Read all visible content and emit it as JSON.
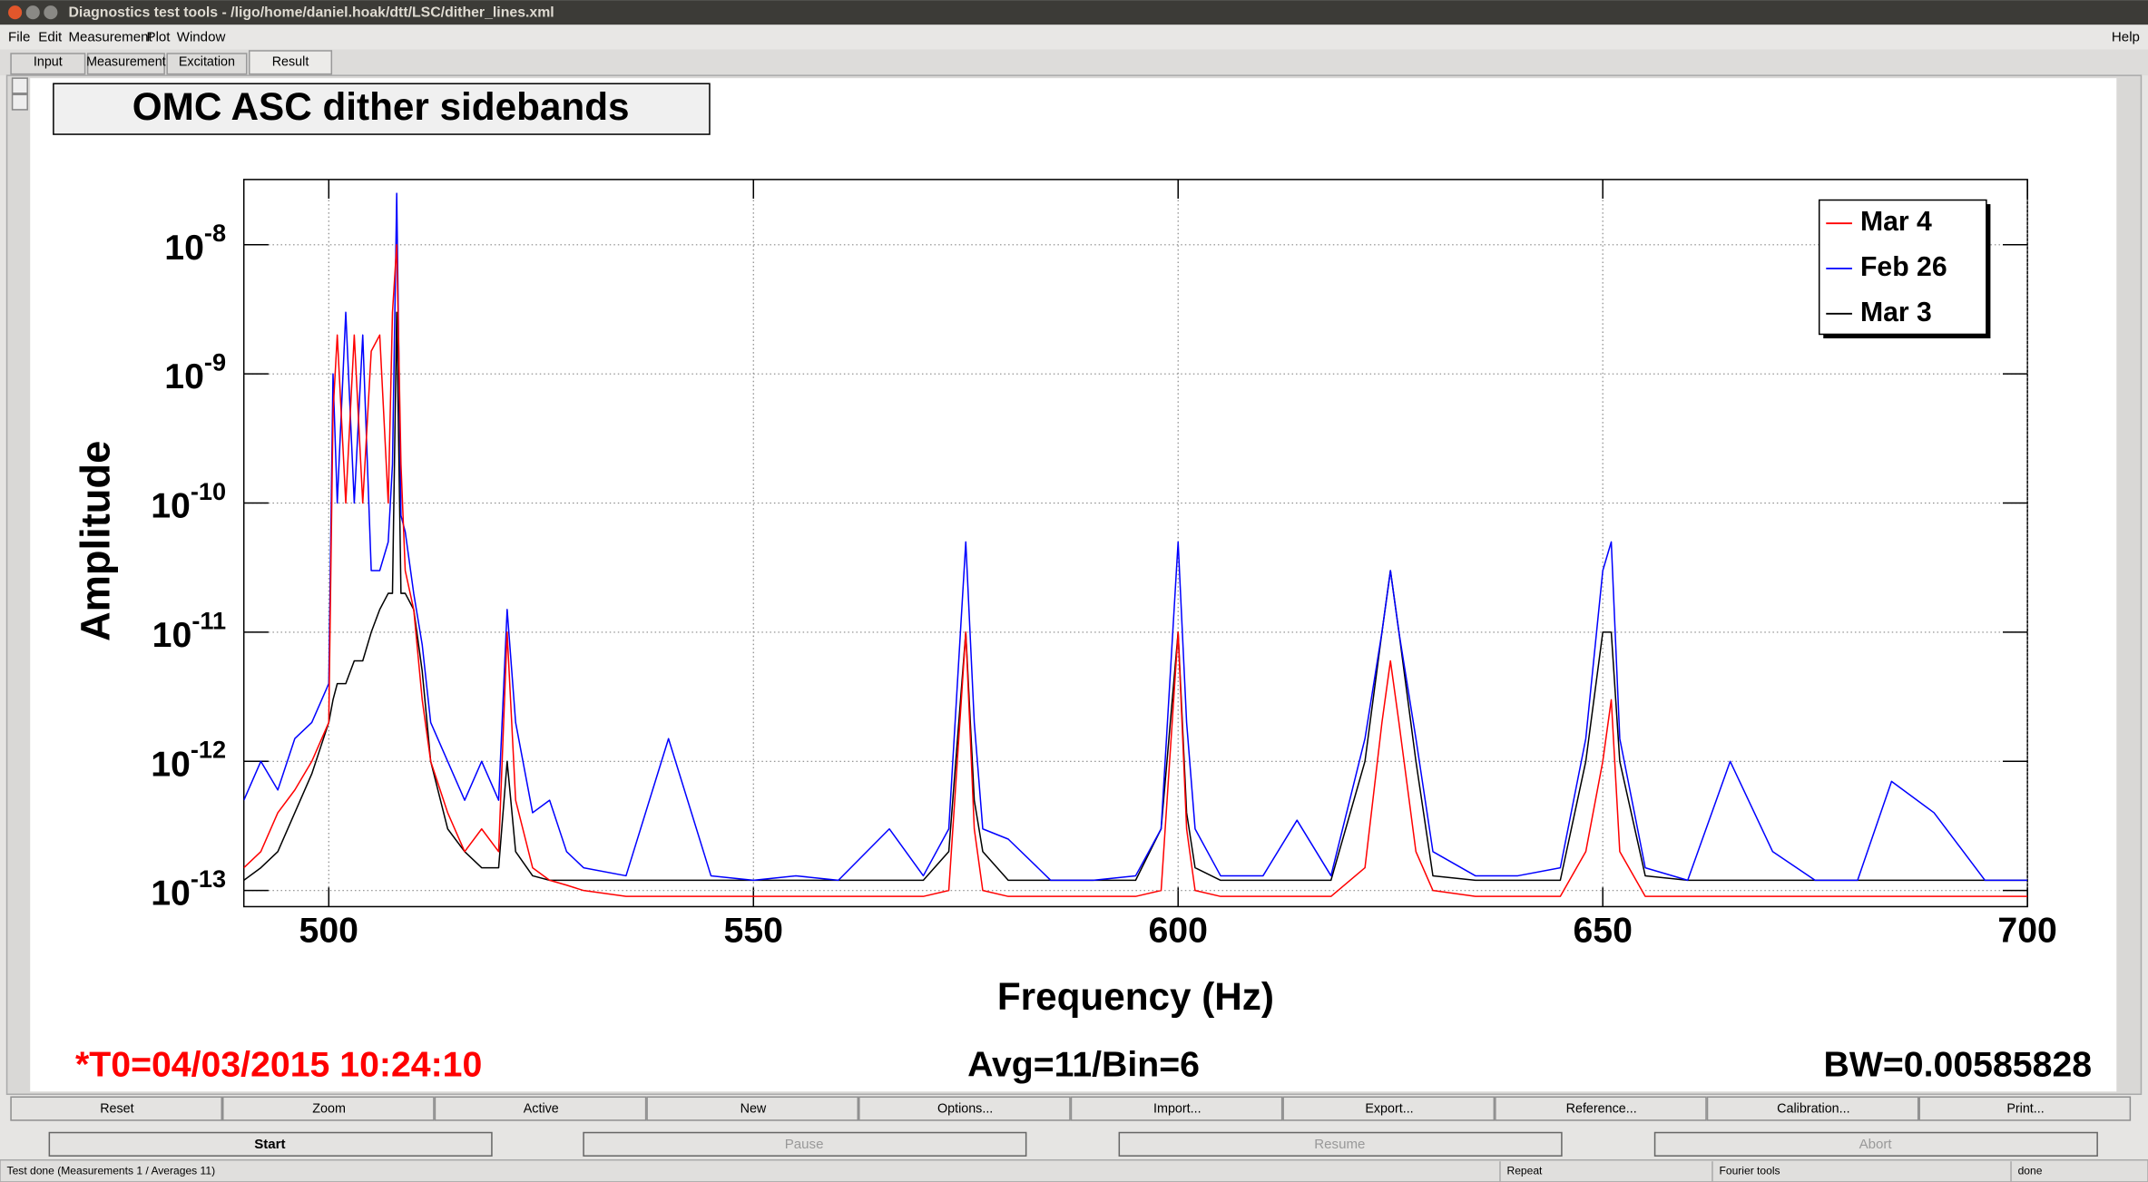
{
  "window_title": "Diagnostics test tools - /ligo/home/daniel.hoak/dtt/LSC/dither_lines.xml",
  "menu": [
    "File",
    "Edit",
    "Measurement",
    "Plot",
    "Window"
  ],
  "help": "Help",
  "tabs": [
    "Input",
    "Measurement",
    "Excitation",
    "Result"
  ],
  "chart_data": {
    "type": "line",
    "title": "OMC ASC dither sidebands",
    "x_label": "Frequency (Hz)",
    "y_label": "Amplitude",
    "log_y": true,
    "grid": true,
    "legend": "top-right",
    "xlim": [
      490,
      700
    ],
    "xticks": [
      500,
      550,
      600,
      650,
      700
    ],
    "ylim": [
      7.5e-14,
      3.2e-08
    ],
    "yticks": [
      {
        "value": 1e-13,
        "label": "10-13"
      },
      {
        "value": 1e-12,
        "label": "10-12"
      },
      {
        "value": 1e-11,
        "label": "10-11"
      },
      {
        "value": 1e-10,
        "label": "10-10"
      },
      {
        "value": 1e-09,
        "label": "10-9"
      },
      {
        "value": 1e-08,
        "label": "10-8"
      }
    ],
    "x": [
      490,
      492,
      494,
      496,
      498,
      500,
      500.5,
      501,
      502,
      503,
      504,
      505,
      506,
      507,
      507.5,
      508,
      508.5,
      509,
      510,
      511,
      512,
      514,
      516,
      518,
      520,
      521,
      522,
      524,
      526,
      528,
      530,
      535,
      540,
      545,
      550,
      555,
      560,
      566,
      570,
      573,
      575,
      576,
      577,
      580,
      585,
      590,
      595,
      598,
      600,
      601,
      602,
      605,
      610,
      614,
      618,
      622,
      624,
      625,
      626,
      628,
      630,
      635,
      640,
      645,
      648,
      650,
      651,
      652,
      655,
      660,
      665,
      670,
      675,
      680,
      684,
      689,
      695,
      700
    ],
    "series": [
      {
        "name": "Mar 4",
        "color": "#ff0000",
        "values": [
          1.5e-13,
          2e-13,
          4e-13,
          6e-13,
          1e-12,
          2e-12,
          5e-10,
          2e-09,
          1e-10,
          2e-09,
          1e-10,
          1.5e-09,
          2e-09,
          1e-10,
          3e-09,
          1e-08,
          2e-10,
          3e-11,
          1.5e-11,
          3e-12,
          1e-12,
          4e-13,
          2e-13,
          3e-13,
          2e-13,
          1e-11,
          5e-13,
          1.5e-13,
          1.2e-13,
          1.1e-13,
          1e-13,
          9e-14,
          9e-14,
          9e-14,
          9e-14,
          9e-14,
          9e-14,
          9e-14,
          9e-14,
          1e-13,
          1e-11,
          3e-13,
          1e-13,
          9e-14,
          9e-14,
          9e-14,
          9e-14,
          1e-13,
          1e-11,
          3e-13,
          1e-13,
          9e-14,
          9e-14,
          9e-14,
          9e-14,
          1.5e-13,
          2e-12,
          6e-12,
          2e-12,
          2e-13,
          1e-13,
          9e-14,
          9e-14,
          9e-14,
          2e-13,
          1e-12,
          3e-12,
          2e-13,
          9e-14,
          9e-14,
          9e-14,
          9e-14,
          9e-14,
          9e-14,
          9e-14,
          9e-14,
          9e-14,
          9e-14
        ]
      },
      {
        "name": "Feb 26",
        "color": "#0000ff",
        "values": [
          5e-13,
          1e-12,
          6e-13,
          1.5e-12,
          2e-12,
          4e-12,
          1e-09,
          1e-10,
          3e-09,
          1e-10,
          2e-09,
          3e-11,
          3e-11,
          5e-11,
          2e-10,
          2.5e-08,
          8e-11,
          6e-11,
          2e-11,
          8e-12,
          2e-12,
          1e-12,
          5e-13,
          1e-12,
          5e-13,
          1.5e-11,
          2e-12,
          4e-13,
          5e-13,
          2e-13,
          1.5e-13,
          1.3e-13,
          1.5e-12,
          1.3e-13,
          1.2e-13,
          1.3e-13,
          1.2e-13,
          3e-13,
          1.3e-13,
          3e-13,
          5e-11,
          2e-12,
          3e-13,
          2.5e-13,
          1.2e-13,
          1.2e-13,
          1.3e-13,
          3e-13,
          5e-11,
          2e-12,
          3e-13,
          1.3e-13,
          1.3e-13,
          3.5e-13,
          1.3e-13,
          1.5e-12,
          1e-11,
          3e-11,
          1e-11,
          1.5e-12,
          2e-13,
          1.3e-13,
          1.3e-13,
          1.5e-13,
          1.5e-12,
          3e-11,
          5e-11,
          1.5e-12,
          1.5e-13,
          1.2e-13,
          1e-12,
          2e-13,
          1.2e-13,
          1.2e-13,
          7e-13,
          4e-13,
          1.2e-13,
          1.2e-13
        ]
      },
      {
        "name": "Mar 3",
        "color": "#000000",
        "values": [
          1.2e-13,
          1.5e-13,
          2e-13,
          4e-13,
          8e-13,
          2e-12,
          3e-12,
          4e-12,
          4e-12,
          6e-12,
          6e-12,
          1e-11,
          1.5e-11,
          2e-11,
          2e-11,
          3e-09,
          2e-11,
          2e-11,
          1.5e-11,
          5e-12,
          1e-12,
          3e-13,
          2e-13,
          1.5e-13,
          1.5e-13,
          1e-12,
          2e-13,
          1.3e-13,
          1.2e-13,
          1.2e-13,
          1.2e-13,
          1.2e-13,
          1.2e-13,
          1.2e-13,
          1.2e-13,
          1.2e-13,
          1.2e-13,
          1.2e-13,
          1.2e-13,
          2e-13,
          1e-11,
          5e-13,
          2e-13,
          1.2e-13,
          1.2e-13,
          1.2e-13,
          1.2e-13,
          3e-13,
          1e-11,
          4e-13,
          1.5e-13,
          1.2e-13,
          1.2e-13,
          1.2e-13,
          1.2e-13,
          1e-12,
          1e-11,
          3e-11,
          1e-11,
          1e-12,
          1.3e-13,
          1.2e-13,
          1.2e-13,
          1.2e-13,
          1e-12,
          1e-11,
          1e-11,
          1e-12,
          1.3e-13,
          1.2e-13,
          1.2e-13,
          1.2e-13,
          1.2e-13,
          1.2e-13,
          1.2e-13,
          1.2e-13,
          1.2e-13,
          1.2e-13
        ]
      }
    ],
    "annotations": [
      "*T0=04/03/2015 10:24:10",
      "Avg=11/Bin=6",
      "BW=0.00585828"
    ]
  },
  "toolbar": [
    "Reset",
    "Zoom",
    "Active",
    "New",
    "Options...",
    "Import...",
    "Export...",
    "Reference...",
    "Calibration...",
    "Print..."
  ],
  "controls": [
    "Start",
    "Pause",
    "Resume",
    "Abort"
  ],
  "status": [
    "Test done (Measurements 1 / Averages 11)",
    "Repeat",
    "Fourier tools",
    "done"
  ]
}
